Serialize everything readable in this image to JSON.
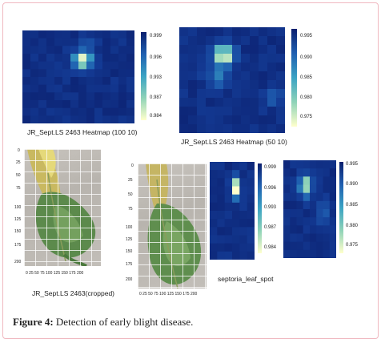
{
  "figure": {
    "caption_label": "Figure 4:",
    "caption_text": " Detection of early blight disease."
  },
  "panels": {
    "heatmap_100": {
      "label": "JR_Sept.LS 2463 Heatmap (100 10)",
      "colorbar_ticks": [
        "0.999",
        "0.996",
        "0.993",
        "0.987",
        "0.984"
      ]
    },
    "heatmap_50": {
      "label": "JR_Sept.LS 2463 Heatmap (50 10)",
      "colorbar_ticks": [
        "0.995",
        "0.990",
        "0.985",
        "0.980",
        "0.975"
      ]
    },
    "cropped_leaf": {
      "label": "JR_Sept.LS 2463(cropped)",
      "y_ticks": [
        "0",
        "25",
        "50",
        "75",
        "100",
        "125",
        "150",
        "175",
        "200"
      ],
      "x_ticks": "0  25  50  75 100 125 150 175 200"
    },
    "leaf_2": {
      "y_ticks": [
        "0",
        "25",
        "50",
        "75",
        "100",
        "125",
        "150",
        "175",
        "200"
      ],
      "x_ticks": "0  25 50 75 100 125 150 175 200"
    },
    "heatmap_small_a": {
      "label": "septoria_leaf_spot",
      "colorbar_ticks": [
        "0.999",
        "0.996",
        "0.993",
        "0.987",
        "0.984"
      ]
    },
    "heatmap_small_b": {
      "colorbar_ticks": [
        "0.995",
        "0.990",
        "0.985",
        "0.980",
        "0.975"
      ]
    }
  },
  "colors": {
    "heat_low": "#0b2a8c",
    "heat_high": "#ffffcc",
    "frame_border": "#f0b8c0"
  }
}
